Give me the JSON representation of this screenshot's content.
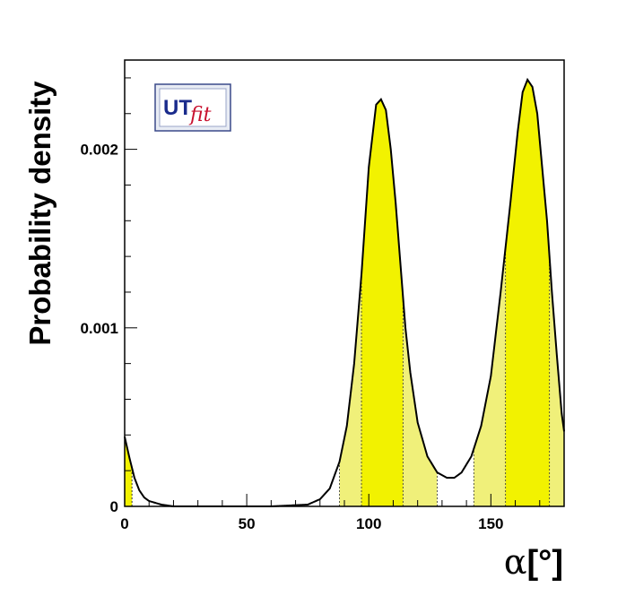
{
  "chart_data": {
    "type": "area",
    "title": "",
    "xlabel": {
      "symbol": "α",
      "unit": "[°]"
    },
    "ylabel": "Probability density",
    "xlim": [
      0,
      180
    ],
    "ylim": [
      0,
      0.0025
    ],
    "x_ticks": [
      0,
      50,
      100,
      150
    ],
    "y_ticks": [
      0,
      0.001,
      0.002
    ],
    "x_tick_labels": [
      "0",
      "50",
      "100",
      "150"
    ],
    "y_tick_labels": [
      "0",
      "0.001",
      "0.002"
    ],
    "grid": false,
    "legend": "none",
    "logo": {
      "text_main": "UT",
      "text_sub": "fit"
    },
    "series": [
      {
        "curve": [
          [
            0,
            0.00039
          ],
          [
            2,
            0.00027
          ],
          [
            4,
            0.00016
          ],
          [
            6,
            9e-05
          ],
          [
            8,
            5e-05
          ],
          [
            10,
            3e-05
          ],
          [
            15,
            1e-05
          ],
          [
            20,
            0.0
          ],
          [
            60,
            0.0
          ],
          [
            75,
            1e-05
          ],
          [
            80,
            4e-05
          ],
          [
            84,
            0.0001
          ],
          [
            88,
            0.00025
          ],
          [
            91,
            0.00045
          ],
          [
            94,
            0.0008
          ],
          [
            97,
            0.0013
          ],
          [
            100,
            0.0019
          ],
          [
            103,
            0.00225
          ],
          [
            105,
            0.00228
          ],
          [
            107,
            0.00222
          ],
          [
            109,
            0.002
          ],
          [
            111,
            0.0017
          ],
          [
            113,
            0.00135
          ],
          [
            115,
            0.001
          ],
          [
            117,
            0.00075
          ],
          [
            120,
            0.00047
          ],
          [
            124,
            0.00028
          ],
          [
            128,
            0.00019
          ],
          [
            132,
            0.00016
          ],
          [
            135,
            0.00016
          ],
          [
            138,
            0.00019
          ],
          [
            142,
            0.00028
          ],
          [
            146,
            0.00045
          ],
          [
            150,
            0.00073
          ],
          [
            154,
            0.0012
          ],
          [
            158,
            0.0017
          ],
          [
            161,
            0.0021
          ],
          [
            163,
            0.00232
          ],
          [
            165,
            0.00239
          ],
          [
            167,
            0.00235
          ],
          [
            169,
            0.0022
          ],
          [
            171,
            0.0019
          ],
          [
            173,
            0.0016
          ],
          [
            175,
            0.0012
          ],
          [
            177,
            0.00085
          ],
          [
            179,
            0.00052
          ],
          [
            180,
            0.00042
          ]
        ],
        "interval_68": [
          [
            0,
            3
          ],
          [
            97,
            114
          ],
          [
            156,
            174
          ]
        ],
        "interval_95": [
          [
            0,
            3
          ],
          [
            88,
            128
          ],
          [
            143,
            180
          ]
        ],
        "colors": {
          "curve": "#000000",
          "band_68": "#f2f200",
          "band_95": "#f0f07a"
        }
      }
    ]
  }
}
